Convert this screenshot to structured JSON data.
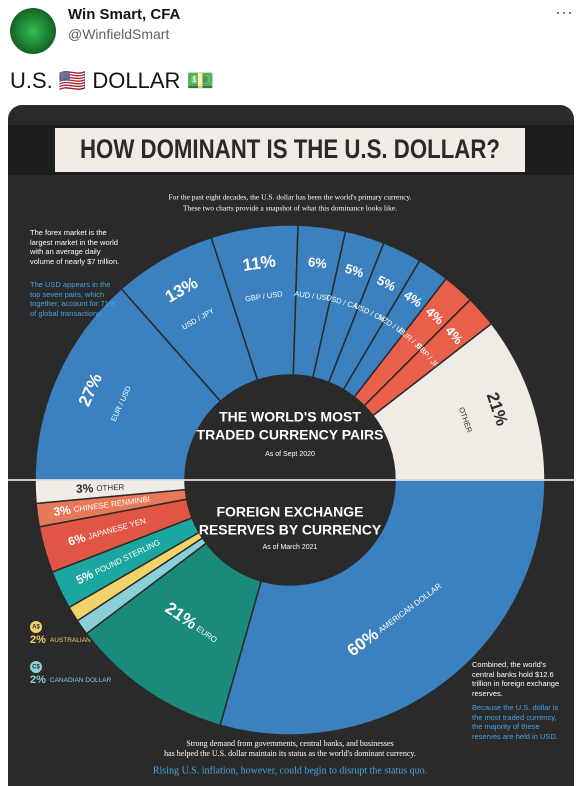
{
  "tweet": {
    "author": "Win Smart, CFA",
    "handle": "@WinfieldSmart",
    "text": "U.S. 🇺🇸 DOLLAR 💵",
    "menu": "···"
  },
  "infographic": {
    "title": "HOW DOMINANT IS THE U.S. DOLLAR?",
    "intro": [
      "For the past eight decades, the U.S. dollar has been the world's primary currency.",
      "These two charts provide a snapshot of what this dominance looks like."
    ],
    "pairs_chart": {
      "title_lines": [
        "THE WORLD'S MOST",
        "TRADED CURRENCY PAIRS"
      ],
      "date": "As of Sept 2020",
      "note": "The forex market is the largest market in the world with an average daily volume of nearly $7 trillion.",
      "note2": "The USD appears in the top seven pairs, which together, account for 71% of global transactions.",
      "slices": [
        {
          "label": "27%",
          "value": 27,
          "name": "EUR / USD",
          "color": "#3b80bf"
        },
        {
          "label": "13%",
          "value": 13,
          "name": "USD / JPY",
          "color": "#3b80bf"
        },
        {
          "label": "11%",
          "value": 11,
          "name": "GBP / USD",
          "color": "#3b80bf"
        },
        {
          "label": "6%",
          "value": 6,
          "name": "AUD / USD",
          "color": "#3b80bf"
        },
        {
          "label": "5%",
          "value": 5,
          "name": "USD / CAD",
          "color": "#3b80bf"
        },
        {
          "label": "5%",
          "value": 5,
          "name": "USD / CHF",
          "color": "#3b80bf"
        },
        {
          "label": "4%",
          "value": 4,
          "name": "NZD / USD",
          "color": "#3b80bf"
        },
        {
          "label": "4%",
          "value": 4,
          "name": "EUR / JPY",
          "color": "#e8604a"
        },
        {
          "label": "4%",
          "value": 4,
          "name": "GBP / JPY",
          "color": "#e8604a"
        },
        {
          "label": "21%",
          "value": 21,
          "name": "OTHER",
          "color": "#f1ebe6"
        }
      ]
    },
    "reserves_chart": {
      "title_lines": [
        "FOREIGN EXCHANGE",
        "RESERVES BY CURRENCY"
      ],
      "date": "As of March 2021",
      "slices": [
        {
          "label": "3%",
          "value": 3,
          "name": "OTHER",
          "color": "#f1ebe6"
        },
        {
          "label": "3%",
          "value": 3,
          "name": "CHINESE RENMINBI",
          "color": "#e8785a"
        },
        {
          "label": "6%",
          "value": 6,
          "name": "JAPANESE YEN",
          "color": "#e05543"
        },
        {
          "label": "5%",
          "value": 5,
          "name": "POUND STERLING",
          "color": "#1ba6a0"
        },
        {
          "label": "2%",
          "value": 2,
          "name": "AUSTRALIAN DOLLAR",
          "color": "#f2d36a",
          "code": "A$"
        },
        {
          "label": "2%",
          "value": 2,
          "name": "CANADIAN DOLLAR",
          "color": "#8ad0d8",
          "code": "C$"
        },
        {
          "label": "21%",
          "value": 21,
          "name": "EURO",
          "color": "#1a8a7a"
        },
        {
          "label": "60%",
          "value": 60,
          "name": "AMERICAN DOLLAR",
          "color": "#3b80bf"
        }
      ]
    },
    "side_note": "Combined, the world's central banks hold $12.6 trillion in foreign exchange reserves.",
    "side_note2": "Because the U.S. dollar is the most traded currency, the majority of these reserves are held in USD.",
    "footer": [
      "Strong demand from governments, central banks, and businesses",
      "has helped the U.S. dollar maintain its status as the world's dominant currency."
    ],
    "closing": "Rising U.S. inflation, however, could begin to disrupt the status quo."
  }
}
